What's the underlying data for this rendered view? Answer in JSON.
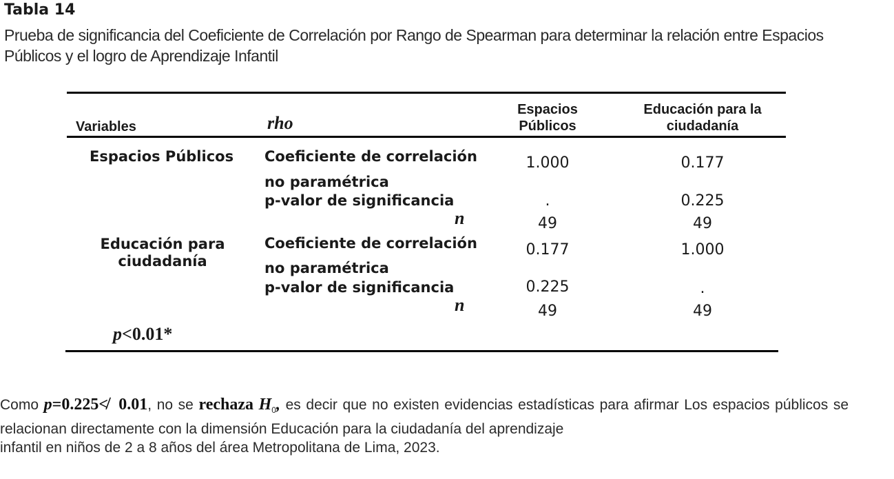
{
  "caption": {
    "label": "Tabla 14",
    "title": "Prueba de significancia del Coeficiente de Correlación por Rango de Spearman para determinar la relación entre Espacios Públicos y el logro de Aprendizaje Infantil"
  },
  "table": {
    "headers": {
      "variables": "Variables",
      "rho": "rho",
      "col1_line1": "Espacios",
      "col1_line2": "Públicos",
      "col2_line1": "Educación para la",
      "col2_line2": "ciudadanía"
    },
    "rows": [
      {
        "variable": "Espacios Públicos",
        "coef_label_1": "Coeficiente de correlación",
        "coef_label_2": "no paramétrica",
        "p_label": "p-valor de significancia",
        "n_label": "n",
        "coef_values": [
          "1.000",
          "0.177"
        ],
        "p_values": [
          ".",
          "0.225"
        ],
        "n_values": [
          "49",
          "49"
        ]
      },
      {
        "variable_line1": "Educación para",
        "variable_line2": "ciudadanía",
        "coef_label_1": "Coeficiente de correlación",
        "coef_label_2": "no paramétrica",
        "p_label": "p-valor de significancia",
        "n_label": "n",
        "coef_values": [
          "0.177",
          "1.000"
        ],
        "p_values": [
          "0.225",
          "."
        ],
        "n_values": [
          "49",
          "49"
        ]
      }
    ],
    "footnote": {
      "p_symbol": "p",
      "rest": "<0.01*"
    }
  },
  "paragraph": {
    "lead": "Como ",
    "p_symbol": "p",
    "p_value": "=0.225",
    "not_less": "≮",
    "threshold": "0.01",
    "mid1": ", no se ",
    "rechaza": "rechaza",
    "h": "H",
    "h_sub": "0",
    "comma": ",",
    "rest": " es decir que no existen evidencias estadísticas para afirmar Los espacios públicos se relacionan directamente con la dimensión Educación para la ciudadanía del aprendizaje",
    "last_line": "infantil en niños de 2 a 8 años del área Metropolitana de Lima, 2023."
  }
}
